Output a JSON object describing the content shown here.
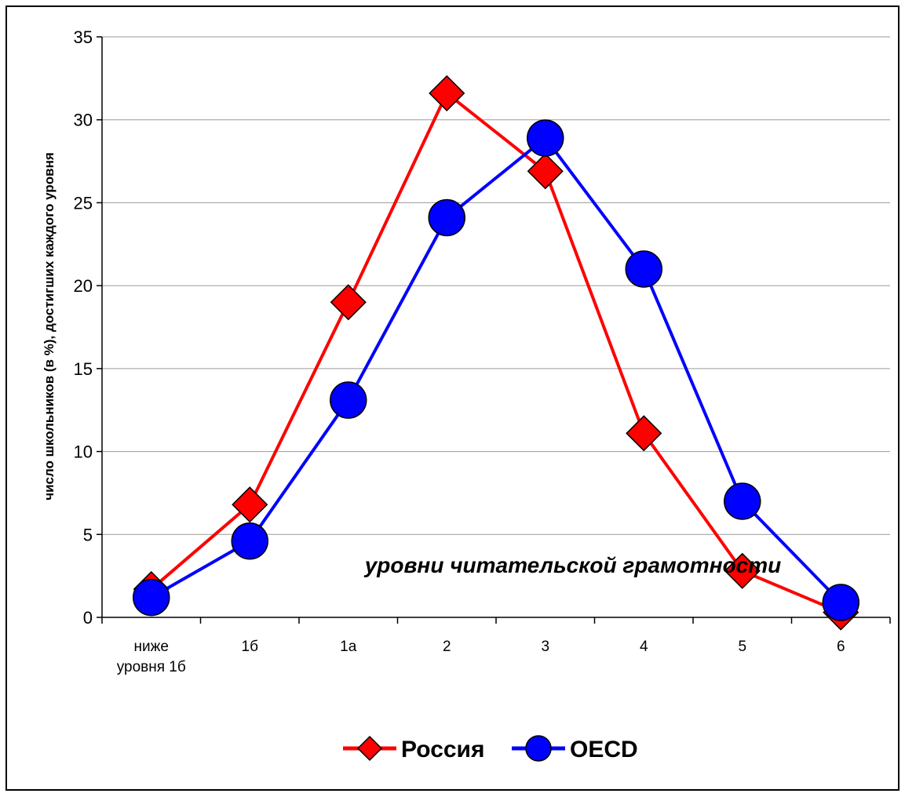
{
  "chart_data": {
    "type": "line",
    "categories": [
      "ниже уровня 1б",
      "1б",
      "1а",
      "2",
      "3",
      "4",
      "5",
      "6"
    ],
    "category_lines": [
      [
        "ниже",
        "уровня 1б"
      ],
      [
        "1б"
      ],
      [
        "1а"
      ],
      [
        "2"
      ],
      [
        "3"
      ],
      [
        "4"
      ],
      [
        "5"
      ],
      [
        "6"
      ]
    ],
    "series": [
      {
        "name": "Россия",
        "values": [
          1.7,
          6.8,
          19.0,
          31.6,
          26.9,
          11.1,
          2.8,
          0.3
        ],
        "color": "#ff0000",
        "marker": "diamond"
      },
      {
        "name": "OECD",
        "values": [
          1.2,
          4.6,
          13.1,
          24.1,
          28.9,
          21.0,
          7.0,
          0.9
        ],
        "color": "#0000ff",
        "marker": "circle"
      }
    ],
    "xlabel": "уровни читательской грамотности",
    "ylabel": "число школьников (в %), достигших каждого уровня",
    "ylim": [
      0,
      35
    ],
    "yticks": [
      "0",
      "5",
      "10",
      "15",
      "20",
      "25",
      "30",
      "35"
    ],
    "grid": true,
    "legend_position": "bottom"
  }
}
